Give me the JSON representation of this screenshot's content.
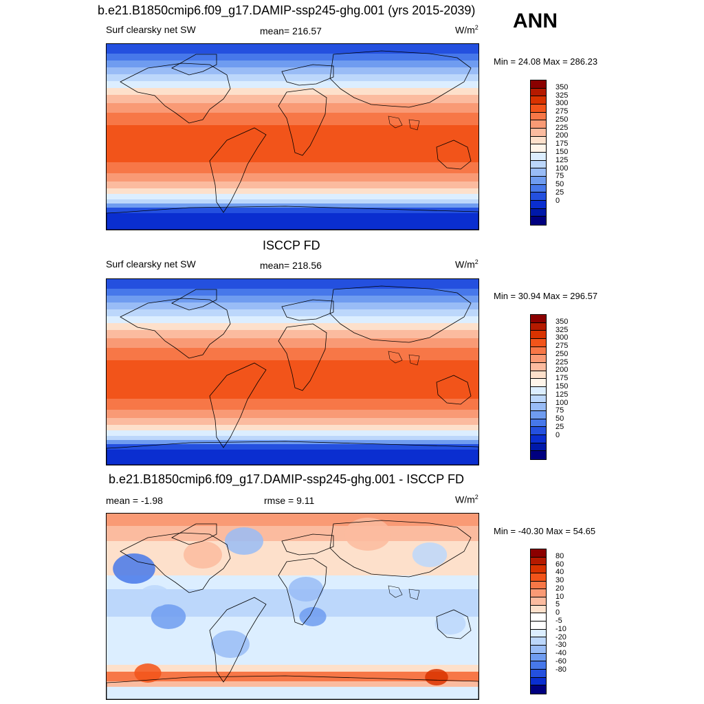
{
  "figure": {
    "season": "ANN"
  },
  "panels": [
    {
      "title": "b.e21.B1850cmip6.f09_g17.DAMIP-ssp245-ghg.001 (yrs 2015-2039)",
      "left_label": "Surf clearsky net SW",
      "center_label": "mean= 216.57",
      "units_base": "W/m",
      "units_exp": "2",
      "minmax": "Min =  24.08 Max = 286.23",
      "field": "sw_model",
      "colorbar": {
        "colors": [
          "#8b0000",
          "#b51a00",
          "#d93300",
          "#f2541a",
          "#f77747",
          "#f99a75",
          "#fbbb9f",
          "#fde0cb",
          "#fff5ea",
          "#dceeff",
          "#bcd7fb",
          "#99bcf6",
          "#6f9cf0",
          "#4778ea",
          "#2450df",
          "#0a2ed0",
          "#0019aa",
          "#000080"
        ],
        "labels": [
          "350",
          "325",
          "300",
          "275",
          "250",
          "225",
          "200",
          "175",
          "150",
          "125",
          "100",
          "75",
          "50",
          "25",
          "0"
        ]
      }
    },
    {
      "title": "ISCCP FD",
      "left_label": "Surf clearsky net SW",
      "center_label": "mean= 218.56",
      "units_base": "W/m",
      "units_exp": "2",
      "minmax": "Min =  30.94 Max = 296.57",
      "field": "sw_obs",
      "colorbar": {
        "colors": [
          "#8b0000",
          "#b51a00",
          "#d93300",
          "#f2541a",
          "#f77747",
          "#f99a75",
          "#fbbb9f",
          "#fde0cb",
          "#fff5ea",
          "#dceeff",
          "#bcd7fb",
          "#99bcf6",
          "#6f9cf0",
          "#4778ea",
          "#2450df",
          "#0a2ed0",
          "#0019aa",
          "#000080"
        ],
        "labels": [
          "350",
          "325",
          "300",
          "275",
          "250",
          "225",
          "200",
          "175",
          "150",
          "125",
          "100",
          "75",
          "50",
          "25",
          "0"
        ]
      }
    },
    {
      "title": "b.e21.B1850cmip6.f09_g17.DAMIP-ssp245-ghg.001 - ISCCP FD",
      "left_label": "mean =  -1.98",
      "center_label": "rmse =   9.11",
      "units_base": "W/m",
      "units_exp": "2",
      "minmax": "Min = -40.30 Max =  54.65",
      "field": "diff",
      "colorbar": {
        "colors": [
          "#8b0000",
          "#b51a00",
          "#d93300",
          "#f2541a",
          "#f77747",
          "#f99a75",
          "#fbbb9f",
          "#fde0cb",
          "#ffffff",
          "#ffffff",
          "#dceeff",
          "#bcd7fb",
          "#99bcf6",
          "#6f9cf0",
          "#4778ea",
          "#2450df",
          "#0a2ed0",
          "#000080"
        ],
        "labels": [
          "80",
          "60",
          "40",
          "30",
          "20",
          "10",
          "5",
          "0",
          "-5",
          "-10",
          "-20",
          "-30",
          "-40",
          "-60",
          "-80"
        ]
      }
    }
  ]
}
